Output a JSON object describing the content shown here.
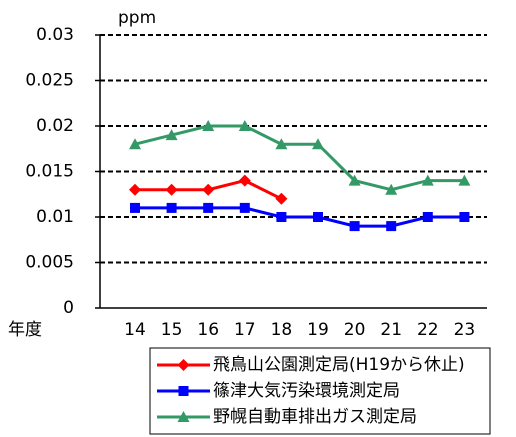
{
  "chart_data": {
    "type": "line",
    "y_axis_label": "ppm",
    "x_axis_label": "年度",
    "categories": [
      "14",
      "15",
      "16",
      "17",
      "18",
      "19",
      "20",
      "21",
      "22",
      "23"
    ],
    "series": [
      {
        "name": "飛鳥山公園測定局(H19から休止)",
        "color": "#ff0000",
        "marker": "diamond",
        "values": [
          0.013,
          0.013,
          0.013,
          0.014,
          0.012,
          null,
          null,
          null,
          null,
          null
        ]
      },
      {
        "name": "篠津大気汚染環境測定局",
        "color": "#0000ff",
        "marker": "square",
        "values": [
          0.011,
          0.011,
          0.011,
          0.011,
          0.01,
          0.01,
          0.009,
          0.009,
          0.01,
          0.01
        ]
      },
      {
        "name": "野幌自動車排出ガス測定局",
        "color": "#339966",
        "marker": "triangle",
        "values": [
          0.018,
          0.019,
          0.02,
          0.02,
          0.018,
          0.018,
          0.014,
          0.013,
          0.014,
          0.014
        ]
      }
    ],
    "ylim": [
      0,
      0.03
    ],
    "yticks": [
      0,
      0.005,
      0.01,
      0.015,
      0.02,
      0.025,
      0.03
    ],
    "grid": true,
    "legend": "bottom"
  }
}
